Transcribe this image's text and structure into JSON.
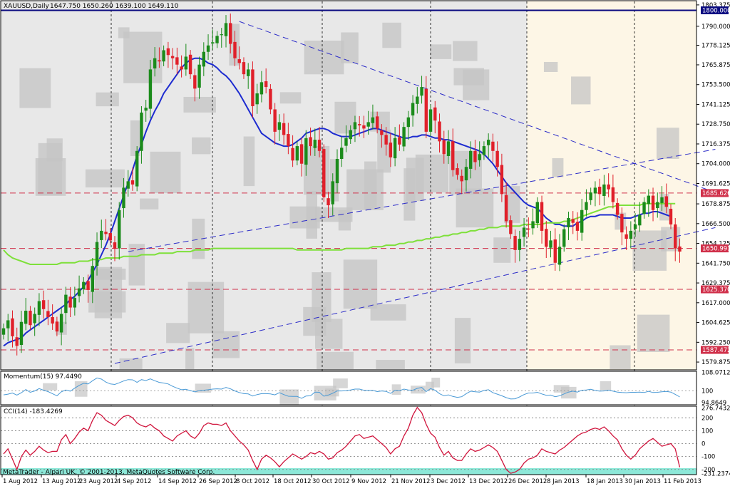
{
  "header": {
    "symbol": "XAUUSD,Daily",
    "ohlc": "1647.750 1650.260 1639.100 1649.110"
  },
  "footer": {
    "copyright": "MetaTrader - Alpari UK, © 2001-2013, MetaQuotes Software Corp."
  },
  "colors": {
    "bull": "#1b8b1b",
    "bear": "#e0202a",
    "ma_fast": "#1d2bd0",
    "ma_slow": "#7ee03a",
    "ma_slow_ext": "#f0f0c0",
    "trend": "#2c2cc8",
    "hline": "#d0304a",
    "top_line": "#0a0a80",
    "momentum": "#4a9ad6",
    "cci": "#d0143c",
    "footer_bg": "#8ce8d8"
  },
  "chart_data": {
    "type": "candlestick",
    "symbol": "XAUUSD",
    "timeframe": "Daily",
    "price_axis": {
      "ylim": [
        1575.0,
        1806.0
      ],
      "ticks": [
        "1803.375",
        "1790.000",
        "1778.125",
        "1765.875",
        "1753.500",
        "1741.125",
        "1728.750",
        "1716.375",
        "1704.000",
        "1691.625",
        "1678.875",
        "1666.500",
        "1654.125",
        "1641.750",
        "1629.375",
        "1617.000",
        "1604.625",
        "1592.250",
        "1579.875"
      ],
      "tick_values": [
        1803.375,
        1790.0,
        1778.125,
        1765.875,
        1753.5,
        1741.125,
        1728.75,
        1716.375,
        1704.0,
        1691.625,
        1678.875,
        1666.5,
        1654.125,
        1641.75,
        1629.375,
        1617.0,
        1604.625,
        1592.25,
        1579.875
      ]
    },
    "price_labels": [
      {
        "value": 1800.0,
        "text": "1800.000",
        "kind": "top"
      },
      {
        "value": 1685.626,
        "text": "1685.626",
        "kind": "hline"
      },
      {
        "value": 1650.991,
        "text": "1650.991",
        "kind": "hline"
      },
      {
        "value": 1625.37,
        "text": "1625.370",
        "kind": "hline"
      },
      {
        "value": 1587.472,
        "text": "1587.472",
        "kind": "hline"
      }
    ],
    "x_axis_labels": [
      "1 Aug 2012",
      "13 Aug 2012",
      "23 Aug 2012",
      "4 Sep 2012",
      "14 Sep 2012",
      "26 Sep 2012",
      "8 Oct 2012",
      "18 Oct 2012",
      "30 Oct 2012",
      "9 Nov 2012",
      "21 Nov 2012",
      "3 Dec 2012",
      "13 Dec 2012",
      "26 Dec 2012",
      "8 Jan 2013",
      "18 Jan 2013",
      "30 Jan 2013",
      "11 Feb 2013"
    ],
    "closes": [
      1601,
      1606,
      1596,
      1590,
      1605,
      1612,
      1603,
      1610,
      1618,
      1613,
      1608,
      1604,
      1599,
      1610,
      1622,
      1614,
      1620,
      1626,
      1630,
      1625,
      1640,
      1655,
      1662,
      1660,
      1656,
      1651,
      1675,
      1689,
      1693,
      1691,
      1712,
      1736,
      1739,
      1763,
      1770,
      1768,
      1775,
      1772,
      1770,
      1766,
      1763,
      1771,
      1760,
      1751,
      1766,
      1774,
      1778,
      1780,
      1784,
      1785,
      1792,
      1779,
      1770,
      1767,
      1760,
      1763,
      1740,
      1748,
      1755,
      1752,
      1738,
      1724,
      1730,
      1722,
      1715,
      1706,
      1715,
      1704,
      1720,
      1715,
      1719,
      1712,
      1683,
      1678,
      1693,
      1707,
      1714,
      1720,
      1725,
      1730,
      1728,
      1726,
      1730,
      1733,
      1726,
      1722,
      1716,
      1708,
      1720,
      1716,
      1727,
      1733,
      1742,
      1746,
      1752,
      1724,
      1738,
      1731,
      1718,
      1710,
      1718,
      1700,
      1697,
      1693,
      1702,
      1712,
      1705,
      1710,
      1715,
      1719,
      1712,
      1702,
      1685,
      1668,
      1660,
      1650,
      1657,
      1664,
      1663,
      1668,
      1680,
      1662,
      1652,
      1656,
      1642,
      1652,
      1663,
      1670,
      1667,
      1662,
      1675,
      1680,
      1686,
      1689,
      1685,
      1691,
      1688,
      1680,
      1672,
      1661,
      1657,
      1662,
      1666,
      1672,
      1680,
      1684,
      1675,
      1680,
      1683,
      1677,
      1666,
      1651,
      1649
    ],
    "moving_averages": [
      {
        "period_kind": "fast",
        "values": [
          1590,
          1592,
          1593,
          1594,
          1595,
          1598,
          1600,
          1602,
          1604,
          1606,
          1608,
          1610,
          1612,
          1614,
          1616,
          1619,
          1621,
          1624,
          1627,
          1631,
          1636,
          1641,
          1647,
          1653,
          1660,
          1668,
          1676,
          1684,
          1692,
          1700,
          1709,
          1716,
          1724,
          1731,
          1737,
          1742,
          1748,
          1752,
          1756,
          1760,
          1764,
          1767,
          1769,
          1770,
          1770,
          1769,
          1767,
          1766,
          1764,
          1761,
          1759,
          1756,
          1752,
          1748,
          1743,
          1738,
          1733,
          1728,
          1723,
          1721,
          1719,
          1717,
          1716,
          1715,
          1715,
          1716,
          1718,
          1720,
          1723,
          1724,
          1725,
          1726,
          1726,
          1725,
          1723,
          1722,
          1721,
          1721,
          1721,
          1722,
          1723,
          1724,
          1725,
          1726,
          1726,
          1725,
          1724,
          1723,
          1722,
          1721,
          1720,
          1720,
          1721,
          1721,
          1722,
          1722,
          1721,
          1720,
          1720,
          1719,
          1719,
          1718,
          1717,
          1716,
          1715,
          1714,
          1713,
          1712,
          1710,
          1707,
          1704,
          1700,
          1696,
          1692,
          1689,
          1686,
          1683,
          1680,
          1678,
          1677,
          1676,
          1673,
          1670,
          1668,
          1666,
          1666,
          1665,
          1665,
          1665,
          1667,
          1668,
          1670,
          1671,
          1671,
          1672,
          1672,
          1672,
          1672,
          1671,
          1670,
          1670,
          1670,
          1671,
          1672,
          1673,
          1673,
          1674,
          1674,
          1673,
          1672,
          1671
        ]
      },
      {
        "period_kind": "slow",
        "values": [
          1650,
          1647,
          1645,
          1644,
          1643,
          1642,
          1641,
          1641,
          1641,
          1641,
          1641,
          1641,
          1641,
          1642,
          1642,
          1642,
          1642,
          1643,
          1643,
          1643,
          1644,
          1644,
          1644,
          1645,
          1645,
          1645,
          1645,
          1646,
          1646,
          1646,
          1646,
          1647,
          1647,
          1647,
          1647,
          1648,
          1648,
          1648,
          1648,
          1649,
          1649,
          1649,
          1649,
          1650,
          1650,
          1650,
          1650,
          1651,
          1651,
          1651,
          1651,
          1651,
          1651,
          1651,
          1651,
          1651,
          1651,
          1651,
          1651,
          1651,
          1651,
          1651,
          1651,
          1651,
          1651,
          1651,
          1650,
          1650,
          1650,
          1650,
          1650,
          1650,
          1650,
          1650,
          1650,
          1650,
          1650,
          1651,
          1651,
          1651,
          1651,
          1651,
          1651,
          1652,
          1652,
          1652,
          1653,
          1653,
          1653,
          1654,
          1654,
          1655,
          1655,
          1656,
          1656,
          1657,
          1657,
          1658,
          1658,
          1659,
          1659,
          1660,
          1660,
          1661,
          1661,
          1662,
          1662,
          1663,
          1663,
          1664,
          1664,
          1664,
          1665,
          1665,
          1665,
          1665,
          1665,
          1666,
          1666,
          1666,
          1666,
          1666,
          1667,
          1667,
          1667,
          1667,
          1668,
          1668,
          1669,
          1670,
          1671,
          1672,
          1673,
          1674,
          1675,
          1676,
          1677,
          1677,
          1678,
          1678,
          1678,
          1678,
          1678,
          1678,
          1679,
          1679,
          1679,
          1679,
          1679,
          1679,
          1679,
          1679
        ]
      }
    ],
    "trend_lines": [
      {
        "x0": 53,
        "y0": 1793,
        "x1": 160,
        "y1": 1686,
        "style": "dashed"
      },
      {
        "x0": 28,
        "y0": 1649,
        "x1": 160,
        "y1": 1713,
        "style": "dashed"
      },
      {
        "x0": 25,
        "y0": 1579,
        "x1": 160,
        "y1": 1664,
        "style": "dashed"
      }
    ],
    "momentum": {
      "label": "Momentum(15) 97.4490",
      "ylim": [
        94.0,
        108.5
      ],
      "ticks": [
        "108.0712",
        "100",
        "94.8649"
      ],
      "tick_values": [
        108.0712,
        100.0,
        94.8649
      ],
      "values": [
        98.3,
        98.6,
        99.1,
        98.2,
        99.2,
        100.6,
        99.4,
        100.0,
        101.0,
        100.3,
        99.7,
        98.8,
        97.9,
        99.6,
        100.4,
        99.9,
        101.2,
        102.4,
        103.3,
        103.0,
        104.4,
        105.6,
        105.1,
        103.8,
        103.0,
        102.8,
        103.5,
        104.3,
        104.9,
        104.8,
        103.7,
        104.9,
        104.5,
        105.2,
        104.4,
        103.7,
        103.4,
        103.0,
        102.0,
        101.2,
        100.5,
        100.7,
        100.1,
        99.6,
        100.1,
        100.3,
        100.5,
        100.8,
        100.9,
        100.8,
        101.5,
        100.9,
        100.0,
        99.3,
        98.8,
        98.7,
        97.8,
        98.4,
        98.8,
        98.8,
        98.7,
        98.3,
        99.2,
        98.4,
        97.7,
        97.6,
        97.6,
        96.8,
        97.8,
        97.9,
        99.5,
        99.4,
        97.7,
        98.2,
        99.0,
        100.0,
        100.0,
        100.1,
        100.4,
        100.8,
        100.8,
        100.3,
        100.2,
        100.2,
        99.7,
        100.0,
        99.8,
        98.9,
        100.3,
        100.1,
        100.8,
        100.4,
        100.3,
        101.1,
        101.5,
        99.7,
        101.0,
        100.3,
        98.8,
        97.9,
        98.3,
        97.6,
        97.2,
        97.5,
        98.8,
        99.9,
        99.6,
        99.5,
        100.2,
        100.5,
        99.2,
        98.6,
        97.9,
        97.1,
        96.5,
        96.6,
        97.4,
        98.4,
        99.1,
        99.1,
        99.4,
        98.7,
        98.1,
        98.2,
        97.5,
        97.9,
        98.7,
        99.5,
        99.9,
        99.5,
        100.3,
        100.4,
        100.7,
        100.2,
        99.9,
        100.0,
        100.3,
        99.9,
        99.5,
        99.3,
        99.2,
        99.4,
        99.4,
        99.5,
        99.3,
        99.8,
        99.3,
        99.4,
        99.6,
        99.8,
        99.5,
        98.5,
        97.4
      ]
    },
    "cci": {
      "label": "CCI(14) -183.4269",
      "ylim": [
        -240,
        290
      ],
      "ticks": [
        "276.7432",
        "200",
        "100",
        "0",
        "-100",
        "-200",
        "-231.2374"
      ],
      "tick_values": [
        276.7432,
        200,
        100,
        0,
        -100,
        -200,
        -231.2374
      ],
      "values": [
        -80,
        -40,
        -120,
        -200,
        -100,
        -50,
        -90,
        -60,
        -20,
        -50,
        -70,
        -60,
        -60,
        30,
        70,
        0,
        40,
        90,
        120,
        100,
        180,
        240,
        220,
        180,
        160,
        140,
        180,
        210,
        220,
        200,
        160,
        140,
        130,
        150,
        120,
        100,
        60,
        40,
        20,
        60,
        80,
        100,
        60,
        40,
        80,
        140,
        160,
        150,
        150,
        140,
        160,
        100,
        60,
        20,
        -10,
        -50,
        -130,
        -200,
        -120,
        -90,
        -110,
        -140,
        -180,
        -140,
        -110,
        -80,
        -100,
        -120,
        -100,
        -70,
        -80,
        -60,
        -80,
        -120,
        -110,
        -70,
        -50,
        -20,
        20,
        60,
        70,
        40,
        50,
        60,
        30,
        0,
        -30,
        -80,
        -40,
        -20,
        60,
        120,
        220,
        280,
        240,
        150,
        80,
        50,
        -30,
        -90,
        -60,
        -110,
        -130,
        -130,
        -80,
        -40,
        -60,
        -50,
        -30,
        -10,
        -30,
        -60,
        -130,
        -200,
        -230,
        -220,
        -200,
        -150,
        -120,
        -110,
        -90,
        -40,
        -60,
        -70,
        -80,
        -50,
        -30,
        0,
        30,
        60,
        80,
        90,
        110,
        120,
        110,
        130,
        100,
        60,
        30,
        -40,
        -90,
        -120,
        -90,
        -40,
        -10,
        20,
        40,
        10,
        -20,
        -10,
        0,
        -40,
        -183
      ]
    }
  }
}
